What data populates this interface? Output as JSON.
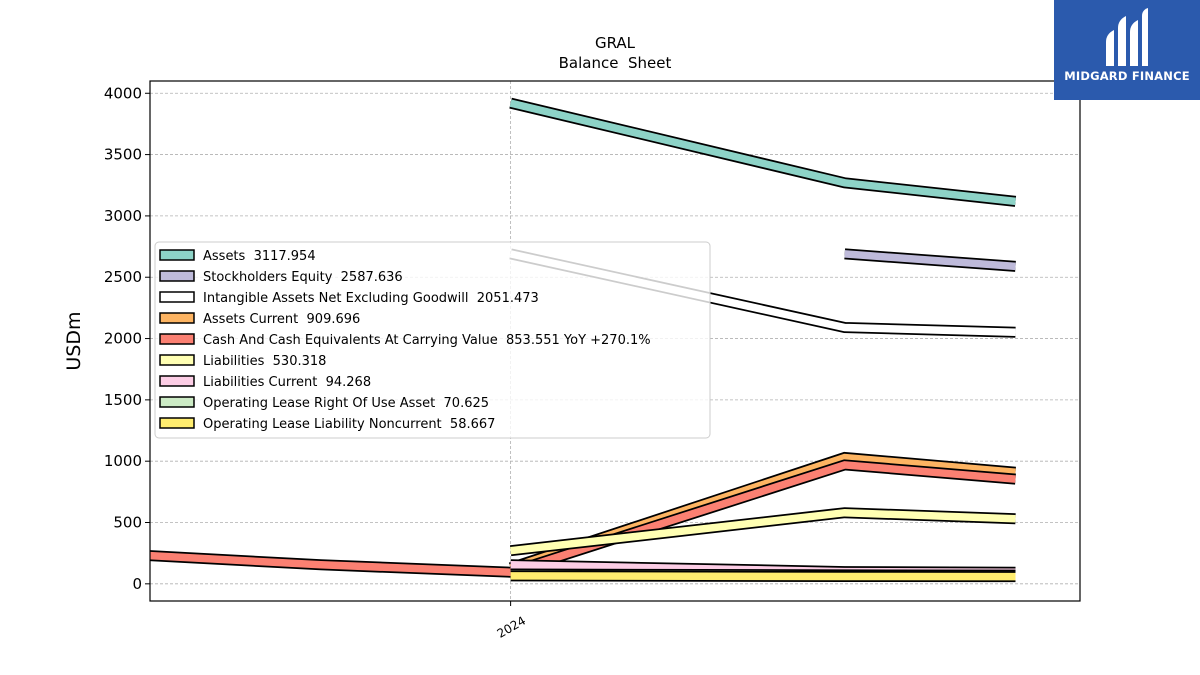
{
  "brand": {
    "name": "MIDGARD FINANCE",
    "bg_color": "#2b5aad"
  },
  "chart_data": {
    "type": "line",
    "title": "GRAL",
    "subtitle": "Balance  Sheet",
    "xlabel": "",
    "ylabel": "USDm",
    "x_ticks": [
      {
        "label": "2024",
        "x": 2024.0
      }
    ],
    "xlim": [
      2023.05,
      2025.5
    ],
    "ylim": [
      -140,
      4100
    ],
    "yticks": [
      0,
      500,
      1000,
      1500,
      2000,
      2500,
      3000,
      3500,
      4000
    ],
    "grid": true,
    "legend_position": "center-left",
    "series": [
      {
        "name": "Assets",
        "legend": "Assets  3117.954",
        "color": "#8dd3c7",
        "points": [
          [
            2024.0,
            3920
          ],
          [
            2024.88,
            3270
          ],
          [
            2025.33,
            3118
          ]
        ]
      },
      {
        "name": "Stockholders Equity",
        "legend": "Stockholders Equity  2587.636",
        "color": "#bebada",
        "points": [
          [
            2024.88,
            2690
          ],
          [
            2025.33,
            2588
          ]
        ]
      },
      {
        "name": "Intangible Assets Net Excluding Goodwill",
        "legend": "Intangible Assets Net Excluding Goodwill  2051.473",
        "color": "#ffffff",
        "points": [
          [
            2024.0,
            2690
          ],
          [
            2024.88,
            2090
          ],
          [
            2025.33,
            2051
          ]
        ]
      },
      {
        "name": "Assets Current",
        "legend": "Assets Current  909.696",
        "color": "#fdb462",
        "points": [
          [
            2024.0,
            130
          ],
          [
            2024.88,
            1030
          ],
          [
            2025.33,
            910
          ]
        ]
      },
      {
        "name": "Cash And Cash Equivalents At Carrying Value",
        "legend": "Cash And Cash Equivalents At Carrying Value  853.551 YoY +270.1%",
        "color": "#fb8072",
        "points": [
          [
            2023.05,
            230
          ],
          [
            2023.5,
            155
          ],
          [
            2024.0,
            95
          ],
          [
            2024.88,
            970
          ],
          [
            2025.33,
            854
          ]
        ]
      },
      {
        "name": "Liabilities",
        "legend": "Liabilities  530.318",
        "color": "#ffffb3",
        "points": [
          [
            2024.0,
            270
          ],
          [
            2024.88,
            580
          ],
          [
            2025.33,
            530
          ]
        ]
      },
      {
        "name": "Liabilities Current",
        "legend": "Liabilities Current  94.268",
        "color": "#fccde5",
        "points": [
          [
            2024.0,
            155
          ],
          [
            2024.88,
            100
          ],
          [
            2025.33,
            94
          ]
        ]
      },
      {
        "name": "Operating Lease Right Of Use Asset",
        "legend": "Operating Lease Right Of Use Asset  70.625",
        "color": "#ccebc5",
        "points": [
          [
            2024.0,
            80
          ],
          [
            2024.88,
            73
          ],
          [
            2025.33,
            71
          ]
        ]
      },
      {
        "name": "Operating Lease Liability Noncurrent",
        "legend": "Operating Lease Liability Noncurrent  58.667",
        "color": "#ffed6f",
        "points": [
          [
            2024.0,
            65
          ],
          [
            2024.88,
            60
          ],
          [
            2025.33,
            59
          ]
        ]
      }
    ]
  }
}
